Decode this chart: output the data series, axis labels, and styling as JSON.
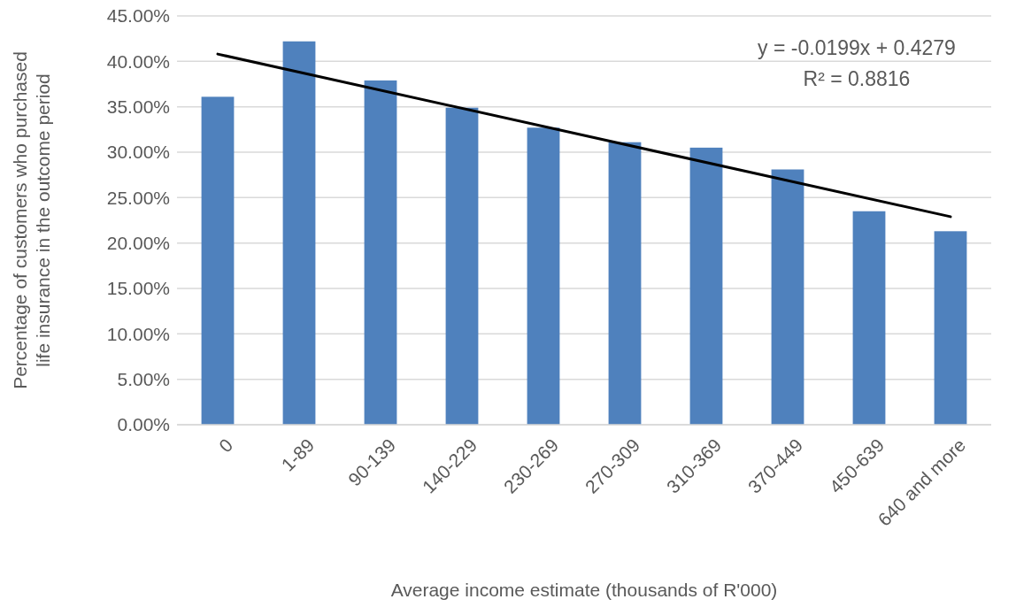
{
  "chart_data": {
    "type": "bar",
    "xlabel": "Average income estimate (thousands of R'000)",
    "ylabel": "Percentage of customers who purchased life insurance in the outcome period",
    "categories": [
      "0",
      "1-89",
      "90-139",
      "140-229",
      "230-269",
      "270-309",
      "310-369",
      "370-449",
      "450-639",
      "640 and more"
    ],
    "series": [
      {
        "color": "#4f81bd",
        "values": [
          36.1,
          42.2,
          37.9,
          34.9,
          32.7,
          31.1,
          30.5,
          28.1,
          23.5,
          21.3
        ]
      },
      {
        "type": "line",
        "color": "#000000",
        "x": [
          "0",
          "640 and more"
        ],
        "values": [
          40.8,
          22.9
        ]
      }
    ],
    "ylim": [
      0,
      45
    ],
    "yticks": [
      {
        "value": 0,
        "label": "0.00%"
      },
      {
        "value": 5,
        "label": "5.00%"
      },
      {
        "value": 10,
        "label": "10.00%"
      },
      {
        "value": 15,
        "label": "15.00%"
      },
      {
        "value": 20,
        "label": "20.00%"
      },
      {
        "value": 25,
        "label": "25.00%"
      },
      {
        "value": 30,
        "label": "30.00%"
      },
      {
        "value": 35,
        "label": "35.00%"
      },
      {
        "value": 40,
        "label": "40.00%"
      },
      {
        "value": 45,
        "label": "45.00%"
      }
    ],
    "grid": "y",
    "annotations": [
      "y = -0.0199x + 0.4279",
      "R² = 0.8816"
    ]
  }
}
